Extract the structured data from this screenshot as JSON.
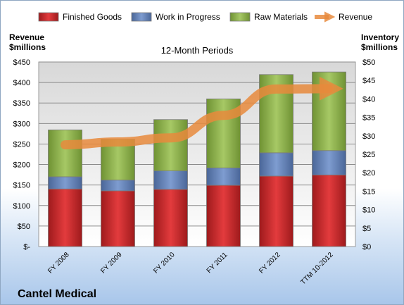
{
  "chart_data": {
    "type": "bar",
    "title": "12-Month Periods",
    "company": "Cantel Medical",
    "categories": [
      "FY 2008",
      "FY 2009",
      "FY 2010",
      "FY 2011",
      "FY 2012",
      "TTM 10-2012"
    ],
    "left_axis": {
      "label_line1": "Revenue",
      "label_line2": "$millions",
      "ylim": [
        0,
        450
      ],
      "ticks": [
        0,
        50,
        100,
        150,
        200,
        250,
        300,
        350,
        400,
        450
      ],
      "tick_labels": [
        "$-",
        "$50",
        "$100",
        "$150",
        "$200",
        "$250",
        "$300",
        "$350",
        "$400",
        "$450"
      ]
    },
    "right_axis": {
      "label_line1": "Inventory",
      "label_line2": "$millions",
      "ylim": [
        0,
        50
      ],
      "ticks": [
        0,
        5,
        10,
        15,
        20,
        25,
        30,
        35,
        40,
        45,
        50
      ],
      "tick_labels": [
        "$0",
        "$5",
        "$10",
        "$15",
        "$20",
        "$25",
        "$30",
        "$35",
        "$40",
        "$45",
        "$50"
      ]
    },
    "series": [
      {
        "name": "Finished Goods",
        "axis": "right",
        "color": "#c0282a",
        "values": [
          15.6,
          15.1,
          15.5,
          16.6,
          19.1,
          19.4
        ]
      },
      {
        "name": "Work in Progress",
        "axis": "right",
        "color": "#5f7fb5",
        "values": [
          3.3,
          2.9,
          5.0,
          4.7,
          6.3,
          6.6
        ]
      },
      {
        "name": "Raw Materials",
        "axis": "right",
        "color": "#8cb04a",
        "values": [
          12.7,
          11.1,
          13.9,
          18.7,
          21.2,
          21.3
        ]
      },
      {
        "name": "Revenue",
        "axis": "left",
        "type": "line",
        "color": "#e8893c",
        "values": [
          248,
          255,
          265,
          320,
          384,
          385
        ]
      }
    ],
    "grid": true,
    "legend_position": "top"
  }
}
